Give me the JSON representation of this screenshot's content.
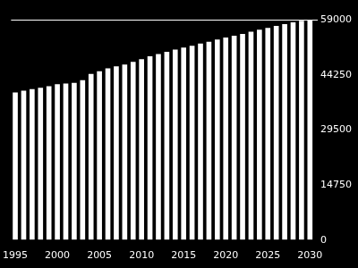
{
  "chart_data": {
    "type": "bar",
    "categories": [
      "1995",
      null,
      null,
      null,
      null,
      "2000",
      null,
      null,
      null,
      null,
      "2005",
      null,
      null,
      null,
      null,
      "2010",
      null,
      null,
      null,
      null,
      "2015",
      null,
      null,
      null,
      null,
      "2020",
      null,
      null,
      null,
      null,
      "2025",
      null,
      null,
      null,
      null,
      "2030"
    ],
    "values": [
      39500,
      40000,
      40400,
      40800,
      41200,
      41700,
      41900,
      42100,
      42800,
      44500,
      45200,
      46000,
      46500,
      47000,
      47700,
      48400,
      49200,
      49800,
      50400,
      51000,
      51500,
      52000,
      52600,
      53100,
      53700,
      54200,
      54700,
      55200,
      55800,
      56300,
      56800,
      57300,
      57800,
      58300,
      58700,
      59000
    ],
    "color": "#ffffff",
    "ylim": [
      0,
      59000
    ],
    "yticks": [
      0,
      14750,
      29500,
      44250,
      59000
    ],
    "grid": false
  }
}
